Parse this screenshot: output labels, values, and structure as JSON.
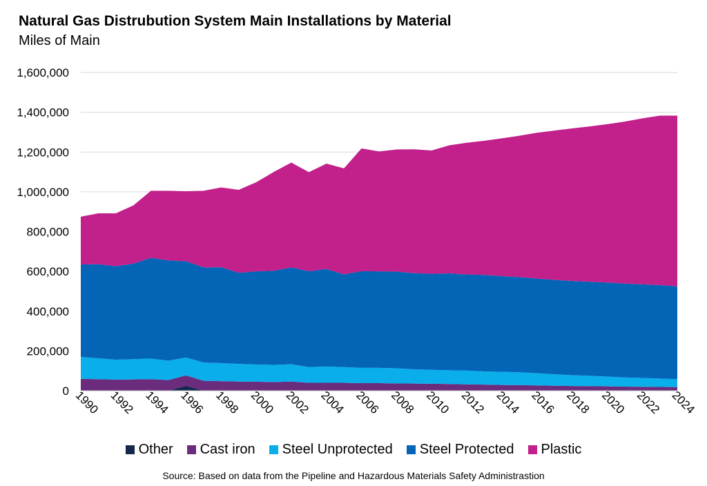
{
  "chart_data": {
    "type": "area",
    "title": "Natural Gas Distrubution System Main Installations by Material",
    "subtitle": "Miles of Main",
    "source": "Source: Based on data from the Pipeline and Hazardous Materials Safety Administrastion",
    "stacked": true,
    "x": [
      1990,
      1991,
      1992,
      1993,
      1994,
      1995,
      1996,
      1997,
      1998,
      1999,
      2000,
      2001,
      2002,
      2003,
      2004,
      2005,
      2006,
      2007,
      2008,
      2009,
      2010,
      2011,
      2012,
      2013,
      2014,
      2015,
      2016,
      2017,
      2018,
      2019,
      2020,
      2021,
      2022,
      2023,
      2024
    ],
    "x_tick_labels": [
      "1990",
      "1992",
      "1994",
      "1996",
      "1998",
      "2000",
      "2002",
      "2004",
      "2006",
      "2008",
      "2010",
      "2012",
      "2014",
      "2016",
      "2018",
      "2020",
      "2022",
      "2024"
    ],
    "ylim": [
      0,
      1600000
    ],
    "y_ticks": [
      0,
      200000,
      400000,
      600000,
      800000,
      1000000,
      1200000,
      1400000,
      1600000
    ],
    "y_tick_labels": [
      "0",
      "200,000",
      "400,000",
      "600,000",
      "800,000",
      "1,000,000",
      "1,200,000",
      "1,400,000",
      "1,600,000"
    ],
    "grid": true,
    "legend_position": "bottom",
    "series": [
      {
        "name": "Other",
        "color": "#14284b",
        "values": [
          0,
          0,
          0,
          0,
          0,
          0,
          25000,
          0,
          0,
          0,
          0,
          0,
          0,
          0,
          0,
          0,
          0,
          0,
          0,
          0,
          0,
          0,
          0,
          0,
          0,
          0,
          0,
          0,
          0,
          0,
          0,
          0,
          0,
          0,
          0
        ]
      },
      {
        "name": "Cast iron",
        "color": "#6b2c7e",
        "values": [
          60000,
          58000,
          56000,
          57000,
          58000,
          54000,
          52000,
          50000,
          48000,
          46000,
          45000,
          44000,
          46000,
          40000,
          40000,
          40000,
          38000,
          38000,
          37000,
          36000,
          35000,
          34000,
          32000,
          31000,
          29000,
          28000,
          27000,
          25000,
          24000,
          23000,
          22000,
          21000,
          20000,
          19000,
          18000
        ]
      },
      {
        "name": "Steel Unprotected",
        "color": "#0aaeea",
        "values": [
          110000,
          105000,
          100000,
          102000,
          104000,
          97000,
          90000,
          92000,
          91000,
          89000,
          87000,
          86000,
          87000,
          79000,
          82000,
          79000,
          77000,
          77000,
          76000,
          72000,
          70000,
          69000,
          69000,
          66000,
          66000,
          65000,
          61000,
          58000,
          54000,
          52000,
          49000,
          46000,
          44000,
          42000,
          40000
        ]
      },
      {
        "name": "Steel Protected",
        "color": "#0465b7",
        "values": [
          465000,
          473000,
          470000,
          480000,
          506000,
          504000,
          484000,
          478000,
          482000,
          458000,
          468000,
          473000,
          487000,
          482000,
          490000,
          466000,
          486000,
          485000,
          486000,
          483000,
          483000,
          487000,
          484000,
          485000,
          481000,
          478000,
          476000,
          474000,
          474000,
          473000,
          473000,
          472000,
          471000,
          470000,
          467000
        ]
      },
      {
        "name": "Plastic",
        "color": "#c2208b",
        "values": [
          240000,
          256000,
          266000,
          293000,
          337000,
          350000,
          352000,
          385000,
          401000,
          417000,
          448000,
          497000,
          527000,
          498000,
          530000,
          533000,
          617000,
          603000,
          614000,
          623000,
          620000,
          644000,
          662000,
          675000,
          693000,
          711000,
          733000,
          751000,
          767000,
          781000,
          796000,
          814000,
          834000,
          852000,
          858000
        ]
      }
    ]
  }
}
